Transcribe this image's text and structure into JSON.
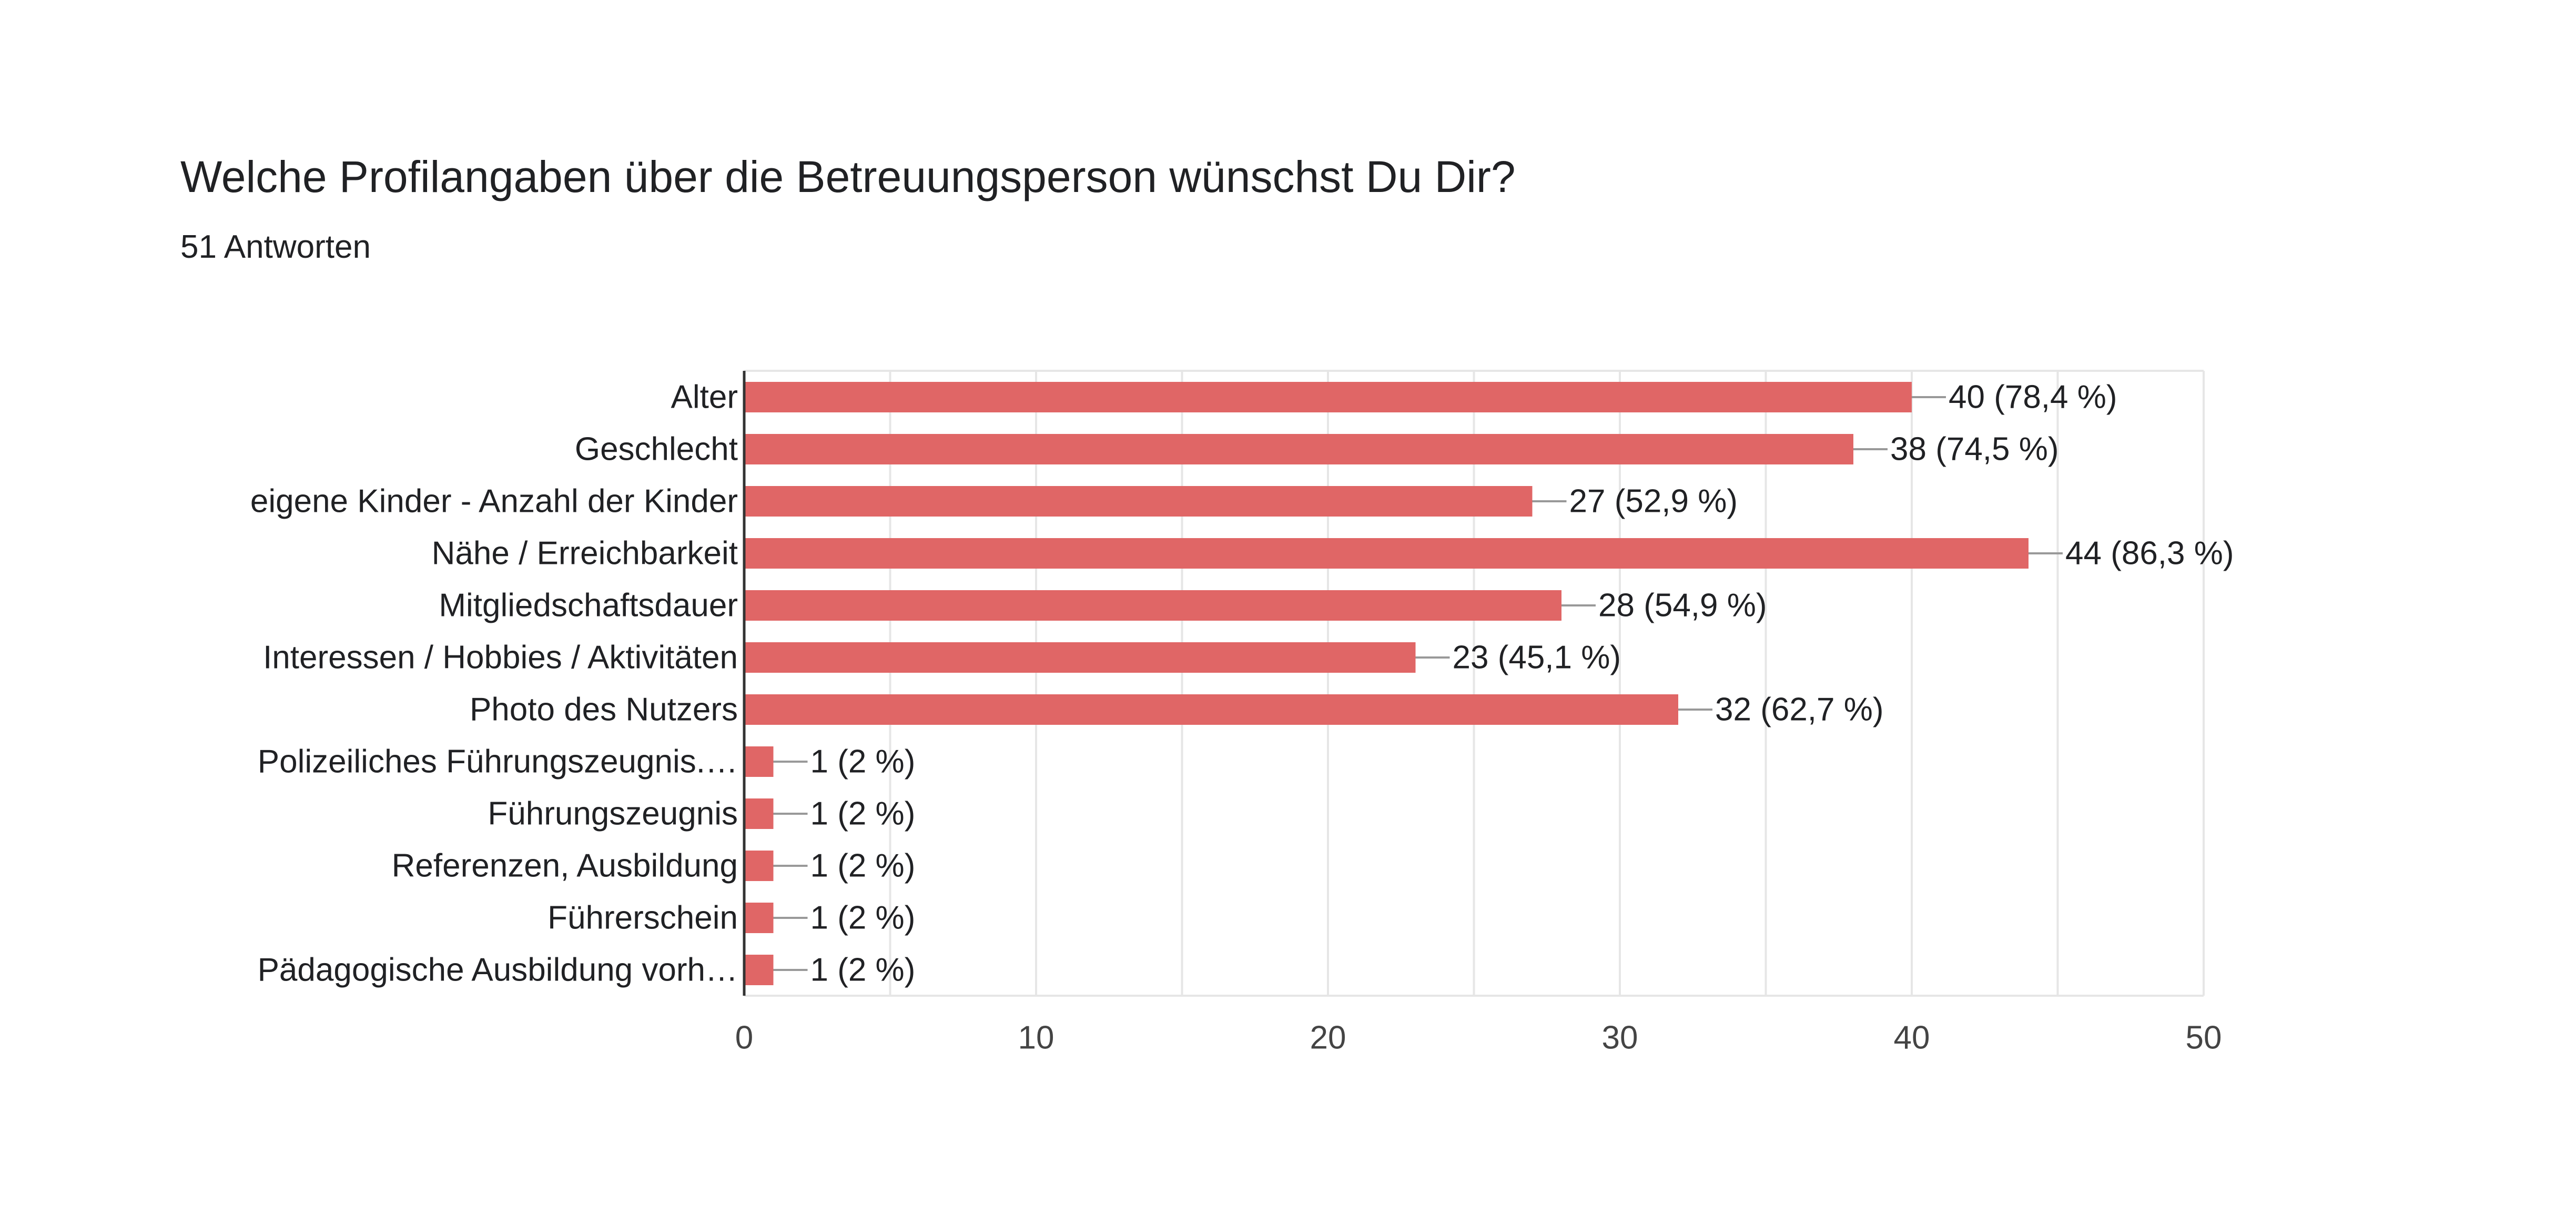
{
  "header": {
    "title": "Welche Profilangaben über die Betreuungsperson wünschst Du Dir?",
    "responses": "51 Antworten"
  },
  "colors": {
    "bar": "#e06666",
    "axis": "#333333",
    "grid": "#e6e6e6",
    "connector": "#999999"
  },
  "chart_data": {
    "type": "bar",
    "orientation": "horizontal",
    "title": "Welche Profilangaben über die Betreuungsperson wünschst Du Dir?",
    "subtitle": "51 Antworten",
    "categories": [
      "Alter",
      "Geschlecht",
      "eigene Kinder - Anzahl der Kinder",
      "Nähe / Erreichbarkeit",
      "Mitgliedschaftsdauer",
      "Interessen / Hobbies / Aktivitäten",
      "Photo des Nutzers",
      "Polizeiliches Führungszeugnis.…",
      "Führungszeugnis",
      "Referenzen, Ausbildung",
      "Führerschein",
      "Pädagogische Ausbildung vorh…"
    ],
    "values": [
      40,
      38,
      27,
      44,
      28,
      23,
      32,
      1,
      1,
      1,
      1,
      1
    ],
    "value_labels": [
      "40 (78,4 %)",
      "38 (74,5 %)",
      "27 (52,9 %)",
      "44 (86,3 %)",
      "28 (54,9 %)",
      "23 (45,1 %)",
      "32 (62,7 %)",
      "1 (2 %)",
      "1 (2 %)",
      "1 (2 %)",
      "1 (2 %)",
      "1 (2 %)"
    ],
    "xlim": [
      0,
      50
    ],
    "x_ticks": [
      0,
      10,
      20,
      30,
      40,
      50
    ],
    "x_tick_labels": [
      "0",
      "10",
      "20",
      "30",
      "40",
      "50"
    ],
    "grid": true,
    "legend": "none",
    "xlabel": "",
    "ylabel": ""
  }
}
